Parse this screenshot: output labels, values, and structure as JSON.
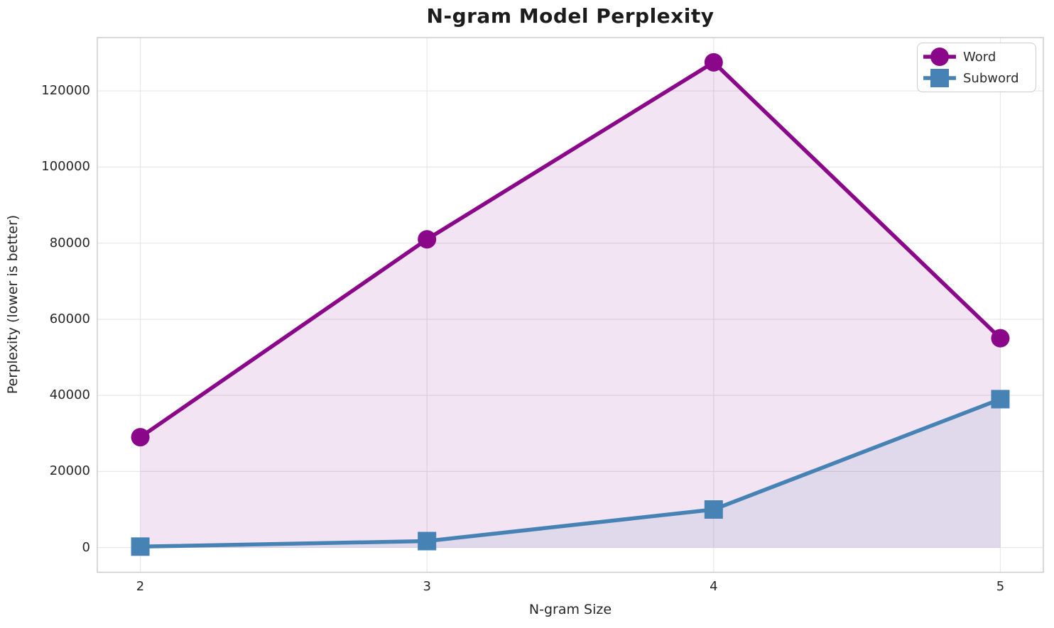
{
  "figure": {
    "title": "N-gram Model Perplexity",
    "xlabel": "N-gram Size",
    "ylabel": "Perplexity (lower is better)"
  },
  "legend": {
    "items": [
      {
        "label": "Word",
        "color": "#8a078a",
        "marker": "circle"
      },
      {
        "label": "Subword",
        "color": "#4682b4",
        "marker": "square"
      }
    ]
  },
  "chart_data": {
    "type": "line",
    "title": "N-gram Model Perplexity",
    "xlabel": "N-gram Size",
    "ylabel": "Perplexity (lower is better)",
    "x": [
      2,
      3,
      4,
      5
    ],
    "series": [
      {
        "name": "Word",
        "values": [
          29000,
          81000,
          127500,
          55000
        ],
        "color": "#8a078a",
        "marker": "circle",
        "fill_to_zero": true,
        "fill_opacity": 0.11
      },
      {
        "name": "Subword",
        "values": [
          250,
          1700,
          10000,
          39000
        ],
        "color": "#4682b4",
        "marker": "square",
        "fill_to_zero": true,
        "fill_opacity": 0.11
      }
    ],
    "xticks": [
      2,
      3,
      4,
      5
    ],
    "xticklabels": [
      "2",
      "3",
      "4",
      "5"
    ],
    "yticks": [
      0,
      20000,
      40000,
      60000,
      80000,
      100000,
      120000
    ],
    "yticklabels": [
      "0",
      "20000",
      "40000",
      "60000",
      "80000",
      "100000",
      "120000"
    ],
    "xlim": [
      1.85,
      5.15
    ],
    "ylim": [
      -6500,
      134000
    ],
    "grid": true,
    "grid_color": "#e7e7e7",
    "spine_color": "#cccccc",
    "legend_position": "upper right"
  }
}
